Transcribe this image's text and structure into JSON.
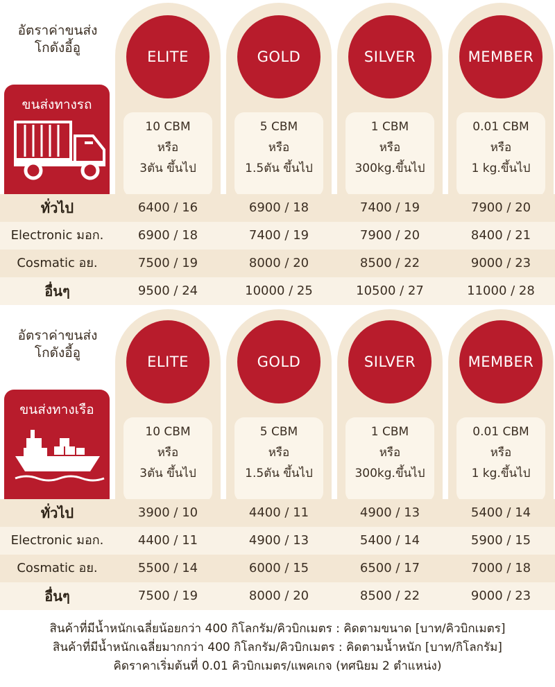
{
  "tiers": [
    "ELITE",
    "GOLD",
    "SILVER",
    "MEMBER"
  ],
  "conditions": [
    {
      "line1": "10 CBM",
      "line2": "หรือ",
      "line3": "3ตัน ขึ้นไป"
    },
    {
      "line1": "5 CBM",
      "line2": "หรือ",
      "line3": "1.5ตัน ขึ้นไป"
    },
    {
      "line1": "1 CBM",
      "line2": "หรือ",
      "line3": "300kg.ขึ้นไป"
    },
    {
      "line1": "0.01 CBM",
      "line2": "หรือ",
      "line3": "1 kg.ขึ้นไป"
    }
  ],
  "sections": [
    {
      "title_line1": "อัตราค่าขนส่ง",
      "title_line2": "โกดังอี้อู",
      "transport_label": "ขนส่งทางรถ",
      "transport_icon": "truck-icon",
      "rows": [
        {
          "label": "ทั่วไป",
          "values": [
            "6400 / 16",
            "6900 / 18",
            "7400 / 19",
            "7900 / 20"
          ]
        },
        {
          "label": "Electronic มอก.",
          "values": [
            "6900 / 18",
            "7400 / 19",
            "7900 / 20",
            "8400 / 21"
          ]
        },
        {
          "label": "Cosmatic อย.",
          "values": [
            "7500 / 19",
            "8000 / 20",
            "8500 / 22",
            "9000 / 23"
          ]
        },
        {
          "label": "อื่นๆ",
          "values": [
            "9500 / 24",
            "10000 / 25",
            "10500 / 27",
            "11000 / 28"
          ]
        }
      ]
    },
    {
      "title_line1": "อัตราค่าขนส่ง",
      "title_line2": "โกดังอี้อู",
      "transport_label": "ขนส่งทางเรือ",
      "transport_icon": "ship-icon",
      "rows": [
        {
          "label": "ทั่วไป",
          "values": [
            "3900 / 10",
            "4400 / 11",
            "4900 / 13",
            "5400 / 14"
          ]
        },
        {
          "label": "Electronic มอก.",
          "values": [
            "4400 / 11",
            "4900 / 13",
            "5400 / 14",
            "5900 / 15"
          ]
        },
        {
          "label": "Cosmatic อย.",
          "values": [
            "5500 / 14",
            "6000 / 15",
            "6500 / 17",
            "7000 / 18"
          ]
        },
        {
          "label": "อื่นๆ",
          "values": [
            "7500 / 19",
            "8000 / 20",
            "8500 / 22",
            "9000 / 23"
          ]
        }
      ]
    }
  ],
  "footer": {
    "line1": "สินค้าที่มีน้ำหนักเฉลี่ยน้อยกว่า 400 กิโลกรัม/คิวบิกเมตร : คิดตามขนาด [บาท/คิวบิกเมตร]",
    "line2": "สินค้าที่มีน้ำหนักเฉลี่ยมากกว่า 400 กิโลกรัม/คิวบิกเมตร : คิดตามน้ำหนัก [บาท/กิโลกรัม]",
    "line3": "คิดราคาเริ่มต้นที่ 0.01 คิวบิกเมตร/แพคเกจ (ทศนิยม 2 ตำแหน่ง)"
  },
  "colors": {
    "accent": "#b81c2c",
    "card": "#f3e7d4",
    "cond": "#fbf5ea",
    "band_odd": "#f3e7d4",
    "band_even": "#f9f2e6"
  }
}
